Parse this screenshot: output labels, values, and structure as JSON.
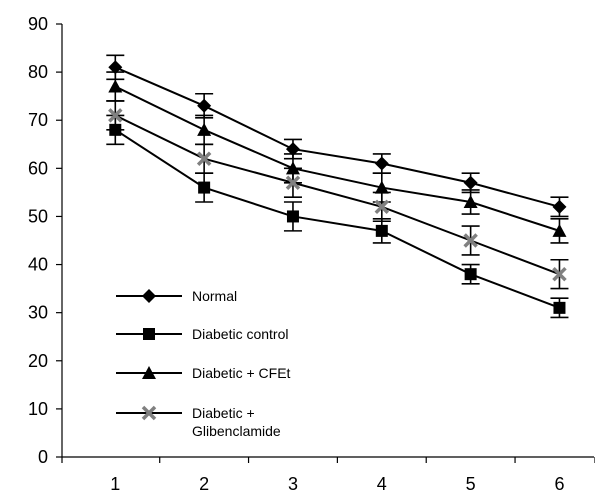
{
  "chart_data": {
    "type": "line",
    "title": "",
    "xlabel": "",
    "ylabel": "",
    "categories": [
      "1",
      "2",
      "3",
      "4",
      "5",
      "6"
    ],
    "x_values": [
      1,
      2,
      3,
      4,
      5,
      6
    ],
    "xlim": [
      0.4,
      6.4
    ],
    "ylim": [
      0,
      90
    ],
    "y_ticks": [
      0,
      10,
      20,
      30,
      40,
      50,
      60,
      70,
      80,
      90
    ],
    "grid": false,
    "legend_position": "bottom-left",
    "series": [
      {
        "name": "Normal",
        "marker": "diamond",
        "values": [
          81,
          73,
          64,
          61,
          57,
          52
        ],
        "errors": [
          2.5,
          2.5,
          2,
          2,
          2,
          2
        ]
      },
      {
        "name": "Diabetic control",
        "marker": "square",
        "values": [
          68,
          56,
          50,
          47,
          38,
          31
        ],
        "errors": [
          3,
          3,
          3,
          2.5,
          2,
          2
        ]
      },
      {
        "name": "Diabetic + CFEt",
        "marker": "triangle",
        "values": [
          77,
          68,
          60,
          56,
          53,
          47
        ],
        "errors": [
          3,
          3,
          3,
          3,
          2.5,
          2.5
        ]
      },
      {
        "name": "Diabetic + Glibenclamide",
        "name_lines": [
          "Diabetic +",
          "Glibenclamide"
        ],
        "marker": "x",
        "values": [
          71,
          62,
          57,
          52,
          45,
          38
        ],
        "errors": [
          3,
          3,
          3,
          3,
          3,
          3
        ]
      }
    ],
    "colors": {
      "line": "#000000",
      "x_marker": "#808080"
    }
  }
}
